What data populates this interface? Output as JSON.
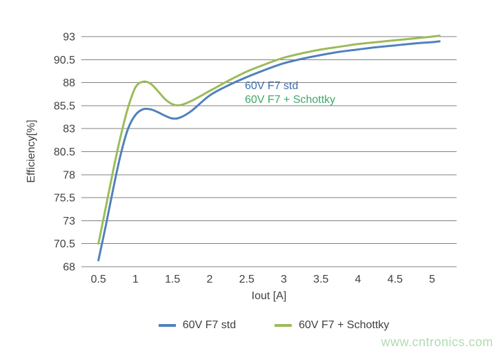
{
  "watermark": "www.cntronics.com",
  "chart_data": {
    "type": "line",
    "title": "",
    "xlabel": "Iout [A]",
    "ylabel": "Efficiency[%]",
    "x_ticks": [
      0.5,
      1,
      1.5,
      2,
      2.5,
      3,
      3.5,
      4,
      4.5,
      5
    ],
    "y_ticks": [
      68,
      70.5,
      73,
      75.5,
      78,
      80.5,
      83,
      85.5,
      88,
      90.5,
      93
    ],
    "xlim": [
      0.27,
      5.33
    ],
    "ylim": [
      68,
      93
    ],
    "grid": "horizontal",
    "gridline_color": "#808080",
    "tick_label_color": "#3f3f3f",
    "legend_position": "bottom",
    "series": [
      {
        "name": "60V F7 std",
        "color": "#4f81bd",
        "x": [
          0.5,
          0.6,
          0.7,
          0.8,
          0.9,
          1.0,
          1.1,
          1.2,
          1.3,
          1.4,
          1.5,
          1.6,
          1.75,
          2.0,
          2.25,
          2.5,
          2.75,
          3.0,
          3.25,
          3.5,
          3.75,
          4.0,
          4.25,
          4.5,
          4.75,
          5.0,
          5.1
        ],
        "y": [
          68.7,
          72.5,
          76.5,
          80.2,
          83.0,
          84.5,
          85.1,
          85.1,
          84.8,
          84.4,
          84.1,
          84.2,
          84.9,
          86.6,
          87.7,
          88.6,
          89.4,
          90.1,
          90.6,
          91.0,
          91.35,
          91.6,
          91.85,
          92.05,
          92.25,
          92.4,
          92.5
        ]
      },
      {
        "name": "60V F7 + Schottky",
        "color": "#9bbb59",
        "x": [
          0.5,
          0.6,
          0.7,
          0.8,
          0.9,
          1.0,
          1.1,
          1.2,
          1.3,
          1.4,
          1.5,
          1.6,
          1.75,
          2.0,
          2.25,
          2.5,
          2.75,
          3.0,
          3.25,
          3.5,
          3.75,
          4.0,
          4.25,
          4.5,
          4.75,
          5.0,
          5.1
        ],
        "y": [
          70.5,
          74.5,
          78.5,
          82.2,
          85.3,
          87.5,
          88.1,
          87.9,
          87.1,
          86.2,
          85.65,
          85.55,
          86.0,
          87.1,
          88.2,
          89.2,
          90.0,
          90.7,
          91.2,
          91.6,
          91.9,
          92.2,
          92.4,
          92.6,
          92.8,
          93.0,
          93.1
        ]
      }
    ],
    "annotations": [
      {
        "text": "60V F7 std",
        "color": "#3a6db0",
        "x": 2.47,
        "y": 88.35
      },
      {
        "text": "60V F7 + Schottky",
        "color": "#3fa86b",
        "x": 2.47,
        "y": 86.85
      }
    ]
  }
}
